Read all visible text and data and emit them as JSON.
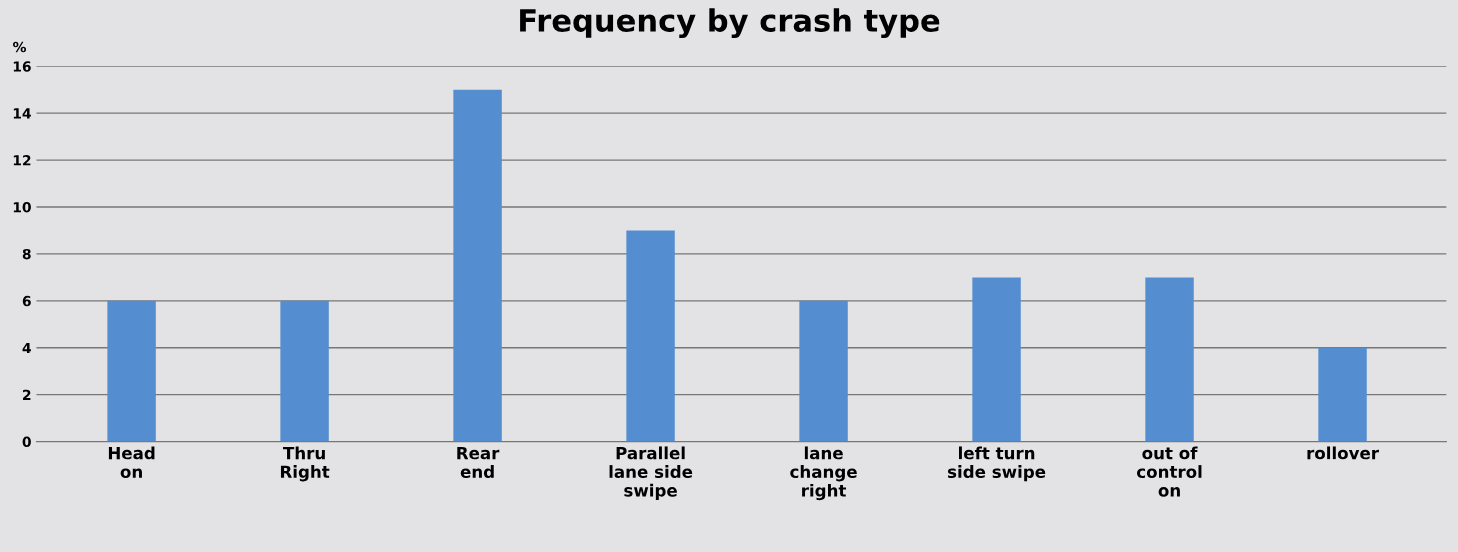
{
  "chart_data": {
    "type": "bar",
    "title": "Frequency by crash type",
    "ylabel": "%",
    "categories": [
      "Head\non",
      "Thru\nRight",
      "Rear\nend",
      "Parallel\nlane side\nswipe",
      "lane\nchange\nright",
      "left turn\nside swipe",
      "out of\ncontrol\non",
      "rollover"
    ],
    "values": [
      6,
      6,
      15,
      9,
      6,
      7,
      7,
      4
    ],
    "color": "#558ed0",
    "ylim": [
      0,
      16
    ],
    "yticks": [
      0,
      2,
      4,
      6,
      8,
      10,
      12,
      14,
      16
    ],
    "grid": "y",
    "legend": false
  }
}
